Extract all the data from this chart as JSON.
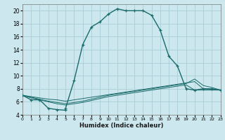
{
  "xlabel": "Humidex (Indice chaleur)",
  "bg_color": "#cce8ee",
  "grid_color": "#aacdd5",
  "line_color": "#1a6b6b",
  "xlim": [
    0,
    23
  ],
  "ylim": [
    4,
    21
  ],
  "xticks": [
    0,
    1,
    2,
    3,
    4,
    5,
    6,
    7,
    8,
    9,
    10,
    11,
    12,
    13,
    14,
    15,
    16,
    17,
    18,
    19,
    20,
    21,
    22,
    23
  ],
  "yticks": [
    4,
    6,
    8,
    10,
    12,
    14,
    16,
    18,
    20
  ],
  "main_x": [
    0,
    1,
    2,
    3,
    4,
    5,
    5,
    6,
    7,
    8,
    9,
    10,
    11,
    12,
    13,
    14,
    15,
    16,
    17,
    18,
    19,
    20,
    21,
    22,
    23
  ],
  "main_y": [
    7.0,
    6.3,
    6.3,
    5.0,
    4.8,
    4.7,
    5.0,
    9.3,
    14.8,
    17.5,
    18.3,
    19.5,
    20.3,
    20.0,
    20.0,
    20.0,
    19.3,
    17.0,
    13.0,
    11.5,
    8.0,
    7.8,
    8.0,
    8.0,
    7.8
  ],
  "flat1_x": [
    0,
    1,
    2,
    3,
    4,
    5,
    6,
    7,
    8,
    9,
    10,
    11,
    12,
    13,
    14,
    15,
    16,
    17,
    18,
    19,
    20,
    21,
    22,
    23
  ],
  "flat1_y": [
    7.0,
    6.8,
    6.6,
    6.4,
    6.3,
    6.1,
    6.3,
    6.5,
    6.7,
    6.9,
    7.1,
    7.3,
    7.5,
    7.7,
    7.9,
    8.1,
    8.3,
    8.5,
    8.7,
    8.9,
    9.1,
    8.0,
    7.9,
    7.8
  ],
  "flat2_x": [
    0,
    1,
    2,
    3,
    4,
    5,
    6,
    7,
    8,
    9,
    10,
    11,
    12,
    13,
    14,
    15,
    16,
    17,
    18,
    19,
    20,
    21,
    22,
    23
  ],
  "flat2_y": [
    7.0,
    6.7,
    6.4,
    6.1,
    5.9,
    5.7,
    5.9,
    6.1,
    6.4,
    6.7,
    7.0,
    7.2,
    7.4,
    7.6,
    7.8,
    8.0,
    8.2,
    8.4,
    8.6,
    8.8,
    9.5,
    8.5,
    8.2,
    7.8
  ],
  "flat3_x": [
    0,
    1,
    2,
    3,
    4,
    5,
    6,
    7,
    8,
    9,
    10,
    11,
    12,
    13,
    14,
    15,
    16,
    17,
    18,
    19,
    20,
    21,
    22,
    23
  ],
  "flat3_y": [
    7.0,
    6.6,
    6.3,
    6.0,
    5.7,
    5.5,
    5.7,
    5.9,
    6.2,
    6.5,
    6.8,
    7.0,
    7.2,
    7.4,
    7.6,
    7.8,
    8.0,
    8.2,
    8.4,
    8.6,
    7.8,
    7.8,
    7.8,
    7.8
  ]
}
